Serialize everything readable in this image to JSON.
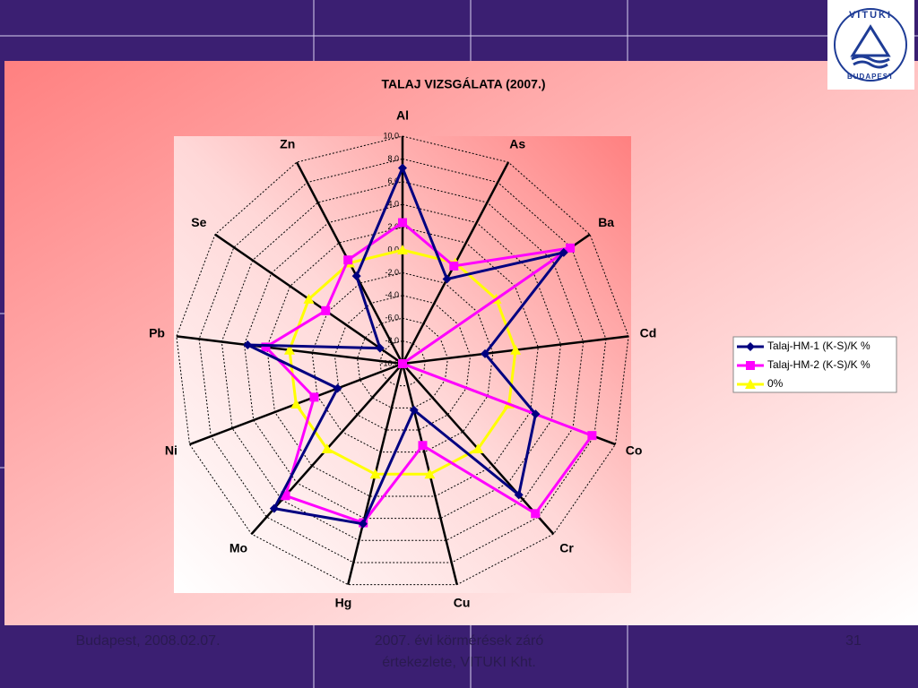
{
  "chart_data": {
    "type": "radar",
    "title": "TALAJ VIZSGÁLATA (2007.)",
    "categories": [
      "Al",
      "As",
      "Ba",
      "Cd",
      "Co",
      "Cr",
      "Cu",
      "Hg",
      "Mo",
      "Ni",
      "Pb",
      "Se",
      "Zn"
    ],
    "series": [
      {
        "name": "Talaj-HM-1 (K-S)/K %",
        "color": "#000080",
        "marker": "diamond",
        "values": [
          7.2,
          -1.6,
          7.2,
          -2.7,
          2.5,
          5.4,
          -5.8,
          4.5,
          7.0,
          -3.9,
          3.7,
          -7.6,
          -1.3
        ]
      },
      {
        "name": "Talaj-HM-2 (K-S)/K %",
        "color": "#ff00ff",
        "marker": "square",
        "values": [
          2.4,
          -0.3,
          7.9,
          -10.0,
          7.8,
          7.6,
          -2.6,
          4.4,
          5.5,
          -1.7,
          2.1,
          -1.8,
          0.3
        ]
      },
      {
        "name": "0%",
        "color": "#ffff00",
        "marker": "triangle",
        "values": [
          0,
          0,
          0,
          0,
          0,
          0,
          0,
          0,
          0,
          0,
          0,
          0,
          0
        ]
      }
    ],
    "rlim": [
      -10,
      10
    ],
    "rticks": [
      {
        "value": 10,
        "label": "10,0"
      },
      {
        "value": 8,
        "label": "8,0"
      },
      {
        "value": 6,
        "label": "6,0"
      },
      {
        "value": 4,
        "label": "4,0"
      },
      {
        "value": 2,
        "label": "2,0"
      },
      {
        "value": 0,
        "label": "0,0"
      },
      {
        "value": -2,
        "label": "-2,0"
      },
      {
        "value": -4,
        "label": "-4,0"
      },
      {
        "value": -6,
        "label": "-6,0"
      },
      {
        "value": -8,
        "label": "-8,0"
      },
      {
        "value": -10,
        "label": "-10,0"
      }
    ],
    "grid": true,
    "legend": "right"
  },
  "footer": {
    "left": "Budapest, 2008.02.07.",
    "center_1": "2007. évi körmérések záró",
    "center_2": "értekezlete, VITUKI Kht.",
    "right": "31"
  },
  "logo": {
    "top": "VITUKI",
    "bottom": "BUDAPEST"
  }
}
